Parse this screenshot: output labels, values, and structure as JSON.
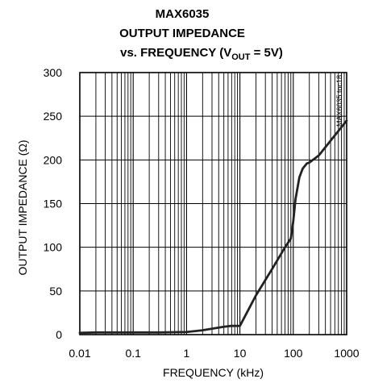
{
  "chart_data": {
    "type": "line",
    "title": [
      "MAX6035",
      "OUTPUT IMPEDANCE",
      "vs. FREQUENCY (V"
    ],
    "title_sub": "OUT",
    "title_tail": " = 5V)",
    "xlabel": "FREQUENCY (kHz)",
    "ylabel": "OUTPUT IMPEDANCE (Ω)",
    "x_scale": "log",
    "xlim": [
      0.01,
      1000
    ],
    "ylim": [
      0,
      300
    ],
    "x_ticks": [
      "0.01",
      "0.1",
      "1",
      "10",
      "100",
      "1000"
    ],
    "y_ticks": [
      "0",
      "50",
      "100",
      "150",
      "200",
      "250",
      "300"
    ],
    "grid": true,
    "side_label": "MAX6035 toc18",
    "series": [
      {
        "color": "#222222",
        "x": [
          0.01,
          0.02,
          0.05,
          0.1,
          0.3,
          1,
          2,
          5,
          7,
          10,
          20,
          40,
          70,
          90,
          100,
          110,
          130,
          150,
          180,
          200,
          300,
          500,
          1000
        ],
        "y": [
          2,
          2.5,
          2.5,
          2.5,
          2.5,
          3,
          5,
          9,
          10,
          10,
          45,
          75,
          100,
          110,
          130,
          155,
          180,
          190,
          196,
          197,
          205,
          222,
          245
        ]
      }
    ]
  }
}
